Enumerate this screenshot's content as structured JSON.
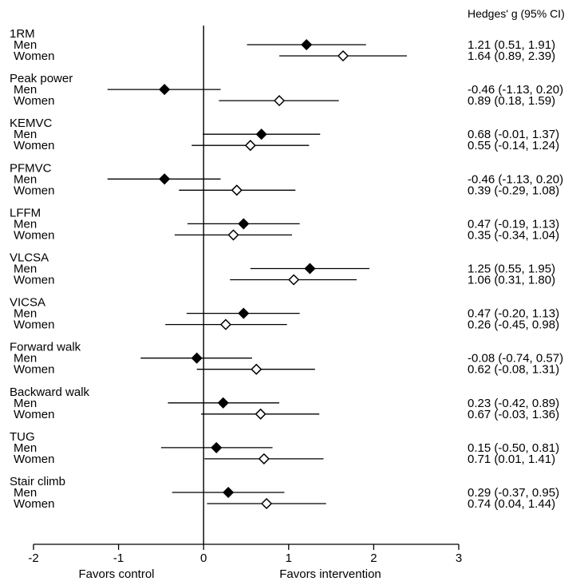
{
  "chart_data": {
    "type": "forest",
    "header": "Hedges' g (95% CI)",
    "xlim": [
      -2,
      3
    ],
    "xticks": [
      -2,
      -1,
      0,
      1,
      2,
      3
    ],
    "xtick_labels": [
      "-2",
      "-1",
      "0",
      "1",
      "2",
      "3"
    ],
    "x_left_label": "Favors control",
    "x_right_label": "Favors intervention",
    "legend": {
      "filled": "Men",
      "open": "Women"
    },
    "groups": [
      {
        "name": "1RM",
        "rows": [
          {
            "label": "Men",
            "est": 1.21,
            "lo": 0.51,
            "hi": 1.91,
            "text": "1.21 (0.51, 1.91)",
            "filled": true
          },
          {
            "label": "Women",
            "est": 1.64,
            "lo": 0.89,
            "hi": 2.39,
            "text": "1.64 (0.89, 2.39)",
            "filled": false
          }
        ]
      },
      {
        "name": "Peak power",
        "rows": [
          {
            "label": "Men",
            "est": -0.46,
            "lo": -1.13,
            "hi": 0.2,
            "text": "-0.46 (-1.13, 0.20)",
            "filled": true
          },
          {
            "label": "Women",
            "est": 0.89,
            "lo": 0.18,
            "hi": 1.59,
            "text": "0.89 (0.18, 1.59)",
            "filled": false
          }
        ]
      },
      {
        "name": "KEMVC",
        "rows": [
          {
            "label": "Men",
            "est": 0.68,
            "lo": -0.01,
            "hi": 1.37,
            "text": "0.68 (-0.01, 1.37)",
            "filled": true
          },
          {
            "label": "Women",
            "est": 0.55,
            "lo": -0.14,
            "hi": 1.24,
            "text": "0.55 (-0.14, 1.24)",
            "filled": false
          }
        ]
      },
      {
        "name": "PFMVC",
        "rows": [
          {
            "label": "Men",
            "est": -0.46,
            "lo": -1.13,
            "hi": 0.2,
            "text": "-0.46 (-1.13, 0.20)",
            "filled": true
          },
          {
            "label": "Women",
            "est": 0.39,
            "lo": -0.29,
            "hi": 1.08,
            "text": "0.39 (-0.29, 1.08)",
            "filled": false
          }
        ]
      },
      {
        "name": "LFFM",
        "rows": [
          {
            "label": "Men",
            "est": 0.47,
            "lo": -0.19,
            "hi": 1.13,
            "text": "0.47 (-0.19, 1.13)",
            "filled": true
          },
          {
            "label": "Women",
            "est": 0.35,
            "lo": -0.34,
            "hi": 1.04,
            "text": "0.35 (-0.34, 1.04)",
            "filled": false
          }
        ]
      },
      {
        "name": "VLCSA",
        "rows": [
          {
            "label": "Men",
            "est": 1.25,
            "lo": 0.55,
            "hi": 1.95,
            "text": "1.25 (0.55, 1.95)",
            "filled": true
          },
          {
            "label": "Women",
            "est": 1.06,
            "lo": 0.31,
            "hi": 1.8,
            "text": "1.06 (0.31, 1.80)",
            "filled": false
          }
        ]
      },
      {
        "name": "VICSA",
        "rows": [
          {
            "label": "Men",
            "est": 0.47,
            "lo": -0.2,
            "hi": 1.13,
            "text": "0.47 (-0.20, 1.13)",
            "filled": true
          },
          {
            "label": "Women",
            "est": 0.26,
            "lo": -0.45,
            "hi": 0.98,
            "text": "0.26 (-0.45, 0.98)",
            "filled": false
          }
        ]
      },
      {
        "name": "Forward walk",
        "rows": [
          {
            "label": "Men",
            "est": -0.08,
            "lo": -0.74,
            "hi": 0.57,
            "text": "-0.08 (-0.74, 0.57)",
            "filled": true
          },
          {
            "label": "Women",
            "est": 0.62,
            "lo": -0.08,
            "hi": 1.31,
            "text": "0.62 (-0.08, 1.31)",
            "filled": false
          }
        ]
      },
      {
        "name": "Backward walk",
        "rows": [
          {
            "label": "Men",
            "est": 0.23,
            "lo": -0.42,
            "hi": 0.89,
            "text": "0.23 (-0.42, 0.89)",
            "filled": true
          },
          {
            "label": "Women",
            "est": 0.67,
            "lo": -0.03,
            "hi": 1.36,
            "text": "0.67 (-0.03, 1.36)",
            "filled": false
          }
        ]
      },
      {
        "name": "TUG",
        "rows": [
          {
            "label": "Men",
            "est": 0.15,
            "lo": -0.5,
            "hi": 0.81,
            "text": "0.15 (-0.50, 0.81)",
            "filled": true
          },
          {
            "label": "Women",
            "est": 0.71,
            "lo": 0.01,
            "hi": 1.41,
            "text": "0.71 (0.01, 1.41)",
            "filled": false
          }
        ]
      },
      {
        "name": "Stair climb",
        "rows": [
          {
            "label": "Men",
            "est": 0.29,
            "lo": -0.37,
            "hi": 0.95,
            "text": "0.29 (-0.37, 0.95)",
            "filled": true
          },
          {
            "label": "Women",
            "est": 0.74,
            "lo": 0.04,
            "hi": 1.44,
            "text": "0.74 (0.04, 1.44)",
            "filled": false
          }
        ]
      }
    ]
  }
}
